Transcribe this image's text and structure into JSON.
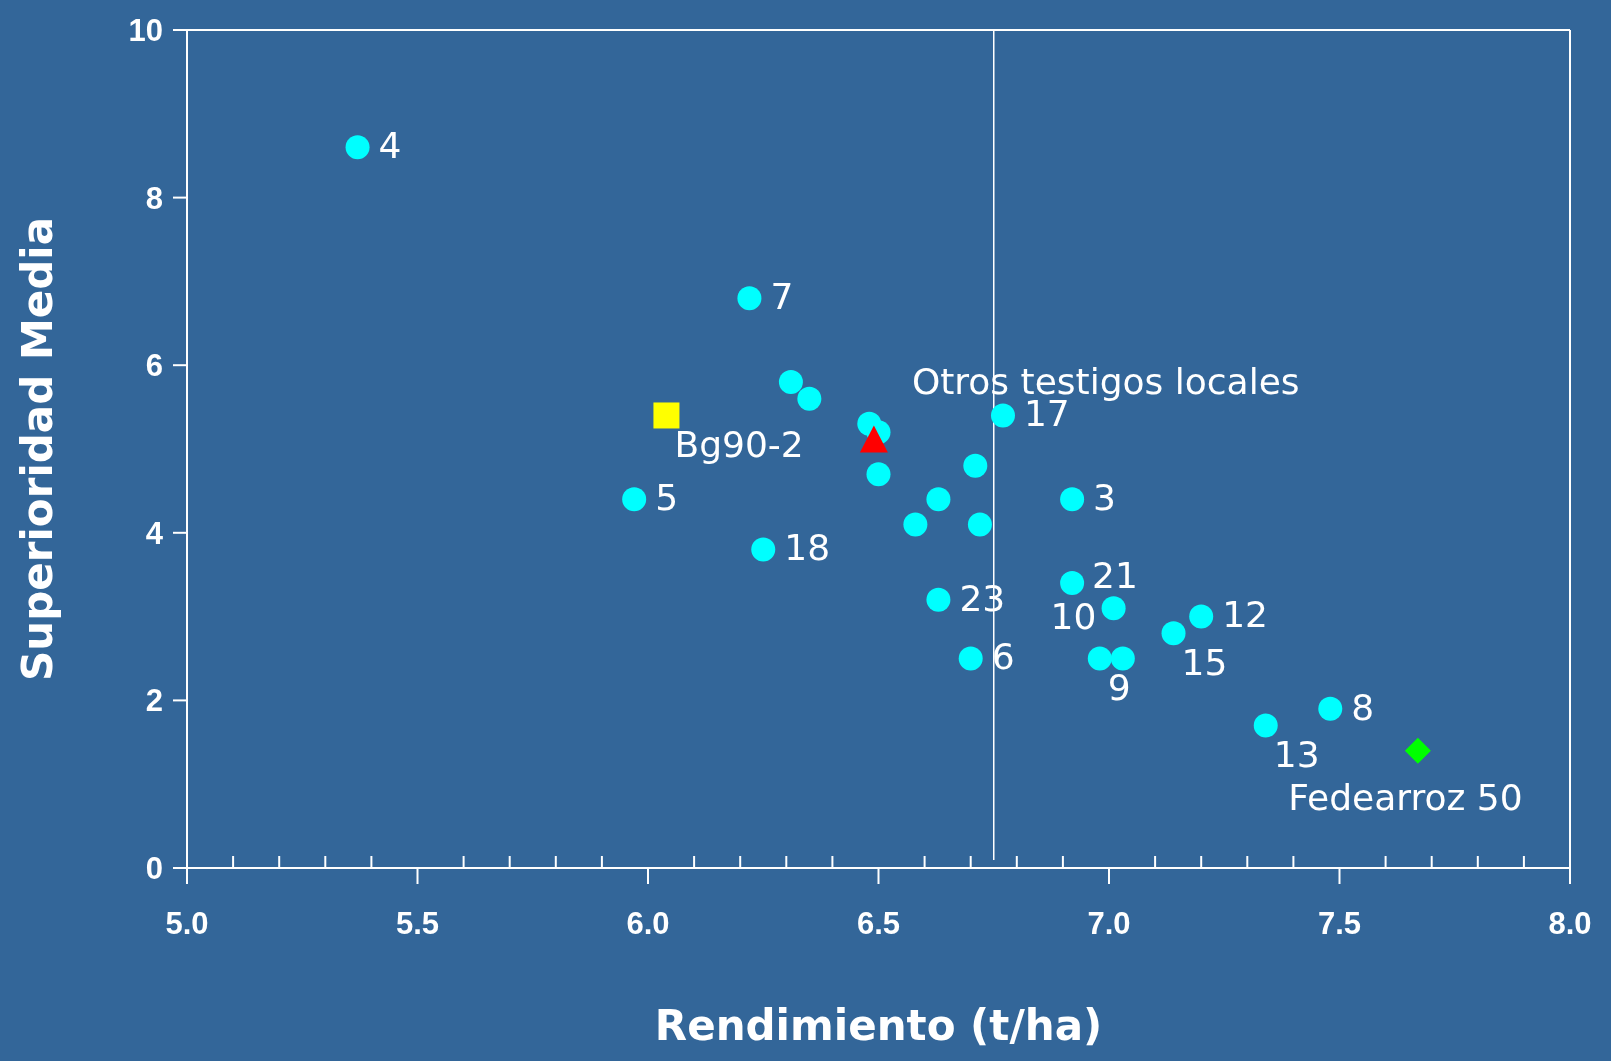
{
  "chart_data": {
    "type": "scatter",
    "xlabel": "Rendimiento (t/ha)",
    "ylabel": "Superioridad Media",
    "xlim": [
      5.0,
      8.0
    ],
    "xticks": [
      {
        "value": 5.0,
        "label": "5.0"
      },
      {
        "value": 5.1,
        "label": null
      },
      {
        "value": 5.2,
        "label": null
      },
      {
        "value": 5.3,
        "label": null
      },
      {
        "value": 5.4,
        "label": null
      },
      {
        "value": 5.5,
        "label": "5.5"
      },
      {
        "value": 5.6,
        "label": null
      },
      {
        "value": 5.7,
        "label": null
      },
      {
        "value": 5.8,
        "label": null
      },
      {
        "value": 5.9,
        "label": null
      },
      {
        "value": 6.0,
        "label": "6.0"
      },
      {
        "value": 6.1,
        "label": null
      },
      {
        "value": 6.2,
        "label": null
      },
      {
        "value": 6.3,
        "label": null
      },
      {
        "value": 6.4,
        "label": null
      },
      {
        "value": 6.5,
        "label": "6.5"
      },
      {
        "value": 6.6,
        "label": null
      },
      {
        "value": 6.7,
        "label": null
      },
      {
        "value": 6.8,
        "label": null
      },
      {
        "value": 6.9,
        "label": null
      },
      {
        "value": 7.0,
        "label": "7.0"
      },
      {
        "value": 7.1,
        "label": null
      },
      {
        "value": 7.2,
        "label": null
      },
      {
        "value": 7.3,
        "label": null
      },
      {
        "value": 7.4,
        "label": null
      },
      {
        "value": 7.5,
        "label": "7.5"
      },
      {
        "value": 7.6,
        "label": null
      },
      {
        "value": 7.7,
        "label": null
      },
      {
        "value": 7.8,
        "label": null
      },
      {
        "value": 7.9,
        "label": null
      },
      {
        "value": 8.0,
        "label": "8.0"
      }
    ],
    "ylim": [
      0,
      10
    ],
    "yticks": [
      0,
      2,
      4,
      6,
      8,
      10
    ],
    "grid": false,
    "annotations": [
      {
        "text": "4",
        "x": 5.37,
        "y": 8.6
      },
      {
        "text": "7",
        "x": 6.22,
        "y": 6.8
      },
      {
        "text": "17",
        "x": 6.77,
        "y": 5.4
      },
      {
        "text": "3",
        "x": 6.92,
        "y": 4.4
      },
      {
        "text": "5",
        "x": 5.97,
        "y": 4.4
      },
      {
        "text": "18",
        "x": 6.25,
        "y": 3.8
      },
      {
        "text": "23",
        "x": 6.63,
        "y": 3.2
      },
      {
        "text": "6",
        "x": 6.7,
        "y": 2.5
      },
      {
        "text": "10",
        "x": 6.92,
        "y": 3.4
      },
      {
        "text": "21",
        "x": 7.01,
        "y": 3.1
      },
      {
        "text": "12",
        "x": 7.2,
        "y": 3.0
      },
      {
        "text": "15",
        "x": 7.14,
        "y": 2.8
      },
      {
        "text": "9",
        "x": 6.98,
        "y": 2.5
      },
      {
        "text": "13",
        "x": 7.34,
        "y": 1.7
      },
      {
        "text": "8",
        "x": 7.48,
        "y": 1.9
      }
    ],
    "ref_lines": [
      {
        "axis": "x",
        "value": 6.75,
        "color": "#ffffff"
      }
    ],
    "series": [
      {
        "color": "#00ffff",
        "marker": "circle",
        "x": [
          5.37,
          6.22,
          6.31,
          6.35,
          6.48,
          6.5,
          6.5,
          6.77,
          6.71,
          6.63,
          6.58,
          6.72,
          6.92,
          5.97,
          6.25,
          6.63,
          6.7,
          6.92,
          7.01,
          7.2,
          7.14,
          6.98,
          7.03,
          7.34,
          7.48
        ],
        "values": [
          8.6,
          6.8,
          5.8,
          5.6,
          5.3,
          5.2,
          4.7,
          5.4,
          4.8,
          4.4,
          4.1,
          4.1,
          4.4,
          4.4,
          3.8,
          3.2,
          2.5,
          3.4,
          3.1,
          3.0,
          2.8,
          2.5,
          2.5,
          1.7,
          1.9
        ]
      },
      {
        "name": "Bg90-2",
        "color": "#ffff00",
        "marker": "square",
        "x": [
          6.04
        ],
        "values": [
          5.4
        ]
      },
      {
        "name": "Otros testigos locales",
        "color": "#ff0000",
        "marker": "triangle",
        "x": [
          6.49
        ],
        "values": [
          5.1
        ]
      },
      {
        "name": "Fedearroz 50",
        "color": "#00ff00",
        "marker": "diamond",
        "x": [
          7.67
        ],
        "values": [
          1.4
        ]
      }
    ]
  }
}
